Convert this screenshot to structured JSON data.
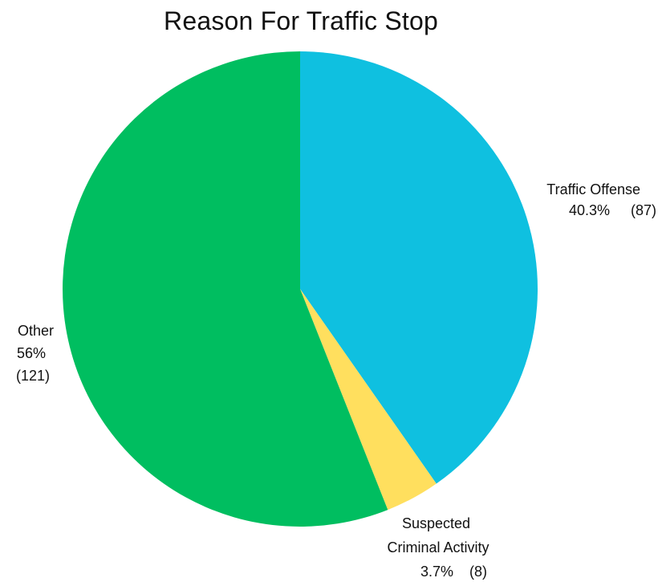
{
  "chart_data": {
    "type": "pie",
    "title": "Reason For Traffic Stop",
    "slices": [
      {
        "name": "Traffic Offense",
        "percent_label": "40.3%",
        "count_label": "(87)",
        "value": 87,
        "color": "#0fc0e0"
      },
      {
        "name": "Suspected Criminal Activity",
        "name_lines": [
          "Suspected",
          "Criminal Activity"
        ],
        "percent_label": "3.7%",
        "count_label": "(8)",
        "value": 8,
        "color": "#ffdf5e"
      },
      {
        "name": "Other",
        "percent_label": "56%",
        "count_label": "(121)",
        "value": 121,
        "color": "#00be60"
      }
    ],
    "start_angle": "12 o'clock",
    "direction": "clockwise"
  }
}
